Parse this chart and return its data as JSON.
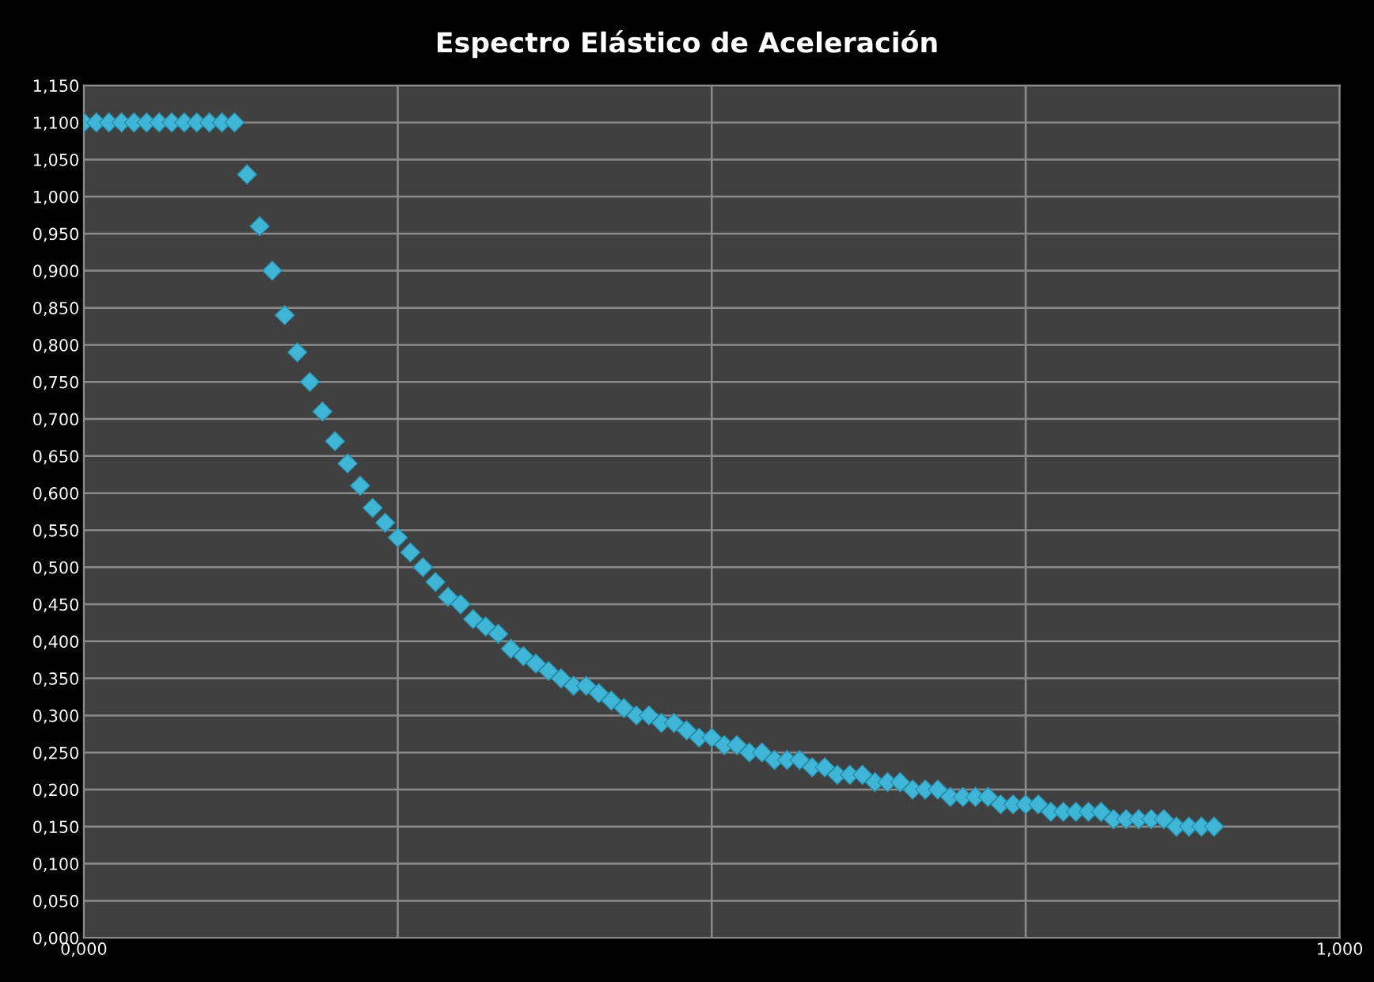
{
  "chart_data": {
    "type": "scatter",
    "title": "Espectro Elástico de Aceleración",
    "series": [
      {
        "color": "#3fb6d6",
        "x": [
          0,
          0.01,
          0.02,
          0.03,
          0.04,
          0.05,
          0.06,
          0.07,
          0.08,
          0.09,
          0.1,
          0.11,
          0.12,
          0.13,
          0.14,
          0.15,
          0.16,
          0.17,
          0.18,
          0.19,
          0.2,
          0.21,
          0.22,
          0.23,
          0.24,
          0.25,
          0.26,
          0.27,
          0.28,
          0.29,
          0.3,
          0.31,
          0.32,
          0.33,
          0.34,
          0.35,
          0.36,
          0.37,
          0.38,
          0.39,
          0.4,
          0.41,
          0.42,
          0.43,
          0.44,
          0.45,
          0.46,
          0.47,
          0.48,
          0.49,
          0.5,
          0.51,
          0.52,
          0.53,
          0.54,
          0.55,
          0.56,
          0.57,
          0.58,
          0.59,
          0.6,
          0.61,
          0.62,
          0.63,
          0.64,
          0.65,
          0.66,
          0.67,
          0.68,
          0.69,
          0.7,
          0.71,
          0.72,
          0.73,
          0.74,
          0.75,
          0.76,
          0.77,
          0.78,
          0.79,
          0.8,
          0.81,
          0.82,
          0.83,
          0.84,
          0.85,
          0.86,
          0.87,
          0.88,
          0.89,
          0.9
        ],
        "values": [
          1.1,
          1.1,
          1.1,
          1.1,
          1.1,
          1.1,
          1.1,
          1.1,
          1.1,
          1.1,
          1.1,
          1.1,
          1.1,
          1.03,
          0.96,
          0.9,
          0.84,
          0.79,
          0.75,
          0.71,
          0.67,
          0.64,
          0.61,
          0.58,
          0.56,
          0.54,
          0.52,
          0.5,
          0.48,
          0.46,
          0.45,
          0.43,
          0.42,
          0.41,
          0.39,
          0.38,
          0.37,
          0.36,
          0.35,
          0.34,
          0.34,
          0.33,
          0.32,
          0.31,
          0.3,
          0.3,
          0.29,
          0.29,
          0.28,
          0.27,
          0.27,
          0.26,
          0.26,
          0.25,
          0.25,
          0.24,
          0.24,
          0.24,
          0.23,
          0.23,
          0.22,
          0.22,
          0.22,
          0.21,
          0.21,
          0.21,
          0.2,
          0.2,
          0.2,
          0.19,
          0.19,
          0.19,
          0.19,
          0.18,
          0.18,
          0.18,
          0.18,
          0.17,
          0.17,
          0.17,
          0.17,
          0.17,
          0.16,
          0.16,
          0.16,
          0.16,
          0.16,
          0.15,
          0.15,
          0.15,
          0.15
        ]
      }
    ],
    "xlim": [
      0,
      1
    ],
    "xticks": [
      {
        "value": 0,
        "label": "0,000"
      },
      {
        "value": 0.25,
        "label": null
      },
      {
        "value": 0.5,
        "label": null
      },
      {
        "value": 0.75,
        "label": null
      },
      {
        "value": 1,
        "label": "1,000"
      }
    ],
    "ylim": [
      0,
      1.15
    ],
    "yticks": [
      {
        "value": 0,
        "label": "0,000"
      },
      {
        "value": 0.05,
        "label": "0,050"
      },
      {
        "value": 0.1,
        "label": "0,100"
      },
      {
        "value": 0.15,
        "label": "0,150"
      },
      {
        "value": 0.2,
        "label": "0,200"
      },
      {
        "value": 0.25,
        "label": "0,250"
      },
      {
        "value": 0.3,
        "label": "0,300"
      },
      {
        "value": 0.35,
        "label": "0,350"
      },
      {
        "value": 0.4,
        "label": "0,400"
      },
      {
        "value": 0.45,
        "label": "0,450"
      },
      {
        "value": 0.5,
        "label": "0,500"
      },
      {
        "value": 0.55,
        "label": "0,550"
      },
      {
        "value": 0.6,
        "label": "0,600"
      },
      {
        "value": 0.65,
        "label": "0,650"
      },
      {
        "value": 0.7,
        "label": "0,700"
      },
      {
        "value": 0.75,
        "label": "0,750"
      },
      {
        "value": 0.8,
        "label": "0,800"
      },
      {
        "value": 0.85,
        "label": "0,850"
      },
      {
        "value": 0.9,
        "label": "0,900"
      },
      {
        "value": 0.95,
        "label": "0,950"
      },
      {
        "value": 1,
        "label": "1,000"
      },
      {
        "value": 1.05,
        "label": "1,050"
      },
      {
        "value": 1.1,
        "label": "1,100"
      },
      {
        "value": 1.15,
        "label": "1,150"
      }
    ],
    "grid": true,
    "marker": "diamond",
    "legend": false
  }
}
